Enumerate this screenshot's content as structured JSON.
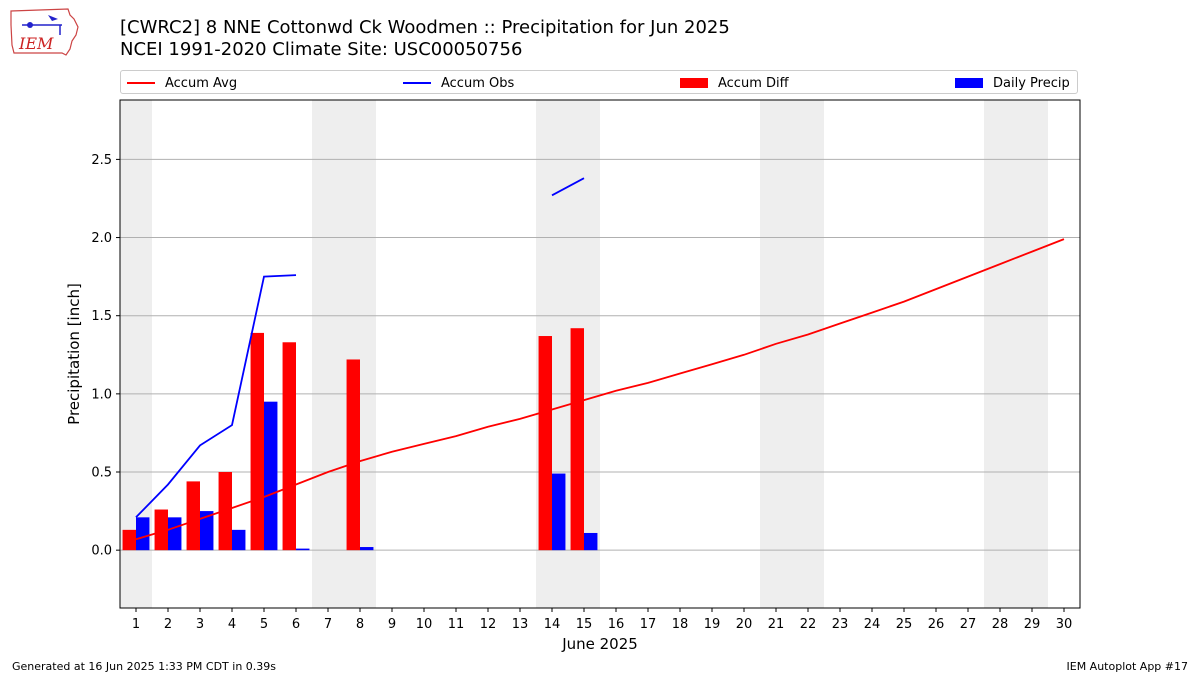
{
  "header": {
    "title_line1": "[CWRC2] 8 NNE Cottonwd Ck Woodmen :: Precipitation for Jun 2025",
    "title_line2": "NCEI 1991-2020 Climate Site: USC00050756"
  },
  "logo": {
    "text": "IEM"
  },
  "footer": {
    "left": "Generated at 16 Jun 2025 1:33 PM CDT in 0.39s",
    "right": "IEM Autoplot App #17"
  },
  "colors": {
    "red": "#ff0000",
    "blue": "#0000ff",
    "weekend": "#eeeeee",
    "grid": "#b0b0b0"
  },
  "chart_data": {
    "type": "bar",
    "xlabel": "June 2025",
    "ylabel": "Precipitation [inch]",
    "xlim": [
      0.5,
      30.5
    ],
    "ylim": [
      -0.37,
      2.88
    ],
    "yticks": [
      0.0,
      0.5,
      1.0,
      1.5,
      2.0,
      2.5
    ],
    "ytick_labels": [
      "0.0",
      "0.5",
      "1.0",
      "1.5",
      "2.0",
      "2.5"
    ],
    "x": [
      1,
      2,
      3,
      4,
      5,
      6,
      7,
      8,
      9,
      10,
      11,
      12,
      13,
      14,
      15,
      16,
      17,
      18,
      19,
      20,
      21,
      22,
      23,
      24,
      25,
      26,
      27,
      28,
      29,
      30
    ],
    "xtick_labels": [
      "1",
      "2",
      "3",
      "4",
      "5",
      "6",
      "7",
      "8",
      "9",
      "10",
      "11",
      "12",
      "13",
      "14",
      "15",
      "16",
      "17",
      "18",
      "19",
      "20",
      "21",
      "22",
      "23",
      "24",
      "25",
      "26",
      "27",
      "28",
      "29",
      "30"
    ],
    "grid": true,
    "legend_placement": "top",
    "weekend_days": [
      1,
      7,
      8,
      14,
      15,
      21,
      22,
      28,
      29
    ],
    "legend": [
      {
        "label": "Accum Avg",
        "kind": "line",
        "color": "#ff0000"
      },
      {
        "label": "Accum Obs",
        "kind": "line",
        "color": "#0000ff"
      },
      {
        "label": "Accum Diff",
        "kind": "bar",
        "color": "#ff0000"
      },
      {
        "label": "Daily Precip",
        "kind": "bar",
        "color": "#0000ff"
      }
    ],
    "series": [
      {
        "name": "Accum Avg",
        "kind": "line",
        "values": [
          0.07,
          0.13,
          0.2,
          0.27,
          0.34,
          0.42,
          0.5,
          0.57,
          0.63,
          0.68,
          0.73,
          0.79,
          0.84,
          0.9,
          0.96,
          1.02,
          1.07,
          1.13,
          1.19,
          1.25,
          1.32,
          1.38,
          1.45,
          1.52,
          1.59,
          1.67,
          1.75,
          1.83,
          1.91,
          1.99
        ]
      },
      {
        "name": "Accum Obs",
        "kind": "line",
        "values": [
          0.21,
          0.42,
          0.67,
          0.8,
          1.75,
          1.76,
          null,
          null,
          null,
          null,
          null,
          null,
          null,
          2.27,
          2.38,
          null,
          null,
          null,
          null,
          null,
          null,
          null,
          null,
          null,
          null,
          null,
          null,
          null,
          null,
          null
        ]
      },
      {
        "name": "Accum Diff",
        "kind": "bar",
        "values": [
          0.13,
          0.26,
          0.44,
          0.5,
          1.39,
          1.33,
          null,
          1.22,
          null,
          null,
          null,
          null,
          null,
          1.37,
          1.42,
          null,
          null,
          null,
          null,
          null,
          null,
          null,
          null,
          null,
          null,
          null,
          null,
          null,
          null,
          null
        ]
      },
      {
        "name": "Daily Precip",
        "kind": "bar",
        "values": [
          0.21,
          0.21,
          0.25,
          0.13,
          0.95,
          0.01,
          null,
          0.02,
          null,
          null,
          null,
          null,
          null,
          0.49,
          0.11,
          null,
          null,
          null,
          null,
          null,
          null,
          null,
          null,
          null,
          null,
          null,
          null,
          null,
          null,
          null
        ]
      }
    ]
  }
}
